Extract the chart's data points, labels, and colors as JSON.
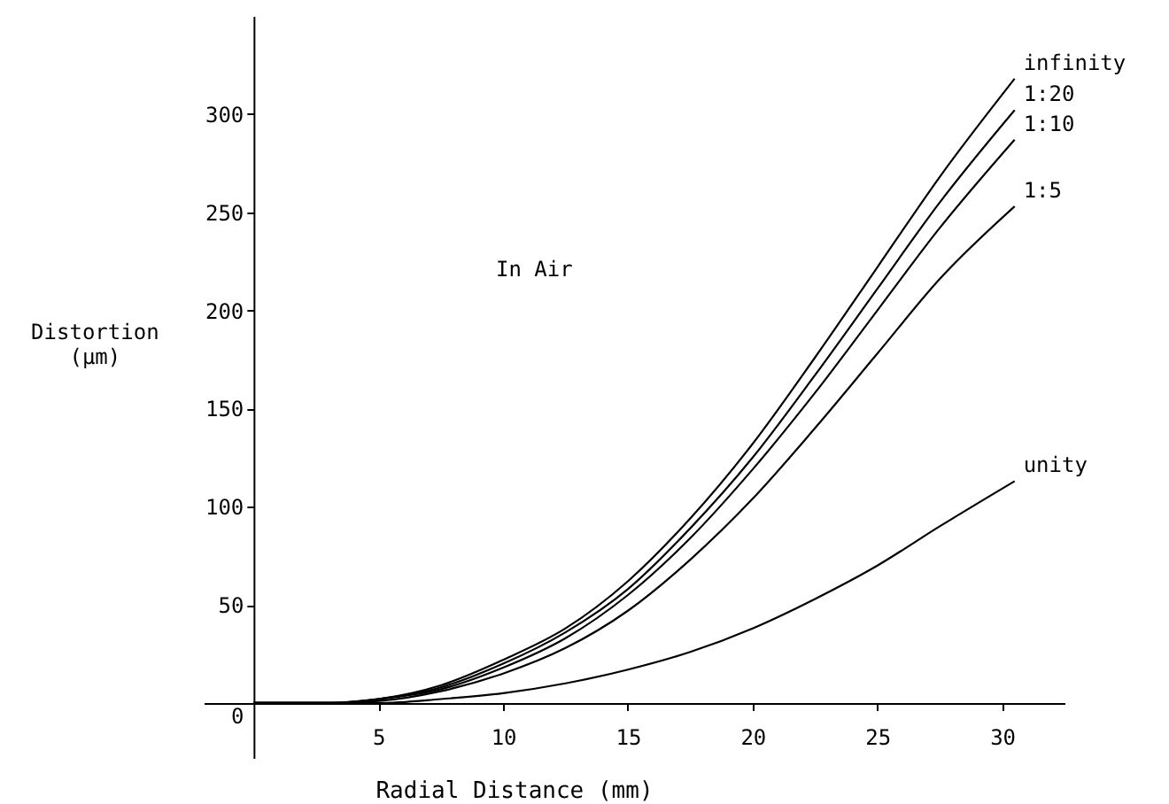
{
  "chart_data": {
    "type": "line",
    "xlabel": "Radial Distance (mm)",
    "ylabel": "Distortion\n(μm)",
    "annotations": [
      "In Air"
    ],
    "x": [
      0,
      3,
      5,
      7.5,
      10,
      12.5,
      15,
      17.5,
      20,
      22.5,
      25,
      27.5,
      30.5
    ],
    "xlim": [
      -2,
      32.5
    ],
    "xticks": [
      5,
      10,
      15,
      20,
      25,
      30
    ],
    "ylim": [
      -28,
      350
    ],
    "yticks": [
      0,
      50,
      100,
      150,
      200,
      250,
      300
    ],
    "grid": false,
    "marker": "none",
    "line_style": "solid",
    "series": [
      {
        "name": "infinity",
        "color": "#000000",
        "values": [
          0,
          0,
          2,
          9,
          22,
          38,
          62,
          94,
          132,
          176,
          222,
          268,
          318
        ]
      },
      {
        "name": "1:20",
        "color": "#000000",
        "values": [
          0,
          0,
          2,
          8,
          20,
          36,
          58,
          89,
          125,
          167,
          211,
          255,
          302
        ]
      },
      {
        "name": "1:10",
        "color": "#000000",
        "values": [
          0,
          0,
          2,
          7,
          18,
          33,
          55,
          84,
          119,
          158,
          200,
          242,
          287
        ]
      },
      {
        "name": "1:5",
        "color": "#000000",
        "values": [
          0,
          0,
          1,
          6,
          15,
          28,
          47,
          73,
          104,
          140,
          178,
          216,
          253
        ]
      },
      {
        "name": "unity",
        "color": "#000000",
        "values": [
          0,
          0,
          0,
          2,
          5,
          10,
          17,
          26,
          38,
          53,
          70,
          90,
          113
        ]
      }
    ]
  }
}
